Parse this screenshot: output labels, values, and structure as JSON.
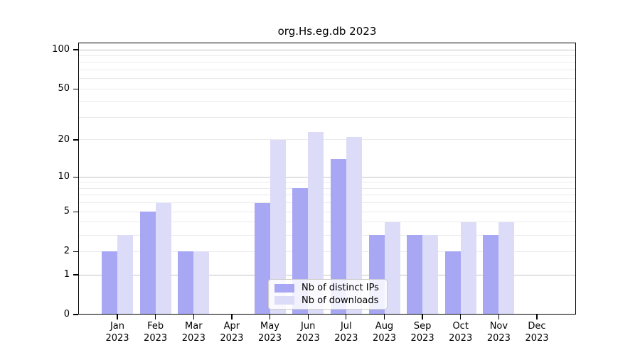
{
  "title": "org.Hs.eg.db 2023",
  "chart_data": {
    "type": "bar",
    "title": "org.Hs.eg.db 2023",
    "y_scale": "log1p",
    "categories": [
      "Jan",
      "Feb",
      "Mar",
      "Apr",
      "May",
      "Jun",
      "Jul",
      "Aug",
      "Sep",
      "Oct",
      "Nov",
      "Dec"
    ],
    "x_tick_year": "2023",
    "series": [
      {
        "name": "Nb of distinct IPs",
        "color": "#a7a7f4",
        "values": [
          2,
          5,
          2,
          0,
          6,
          8,
          14,
          3,
          3,
          2,
          3,
          0
        ]
      },
      {
        "name": "Nb of downloads",
        "color": "#dcdcf9",
        "values": [
          3,
          6,
          2,
          0,
          20,
          23,
          21,
          4,
          3,
          4,
          4,
          0
        ]
      }
    ],
    "y_ticks": [
      0,
      1,
      2,
      5,
      10,
      20,
      50,
      100
    ],
    "major_gridlines": [
      1,
      10,
      100
    ],
    "minor_gridlines": [
      2,
      3,
      4,
      5,
      6,
      7,
      8,
      9,
      20,
      30,
      40,
      50,
      60,
      70,
      80,
      90
    ],
    "ylim": [
      0,
      113
    ],
    "xlabel": "",
    "ylabel": "",
    "grid": "horizontal",
    "legend_position": "bottom-center"
  },
  "colors": {
    "background": "#ffffff",
    "spine": "#000000",
    "major_grid": "#c2c2c2",
    "minor_grid": "#ebebeb",
    "text": "#000000",
    "legend_border": "#cccccc"
  }
}
